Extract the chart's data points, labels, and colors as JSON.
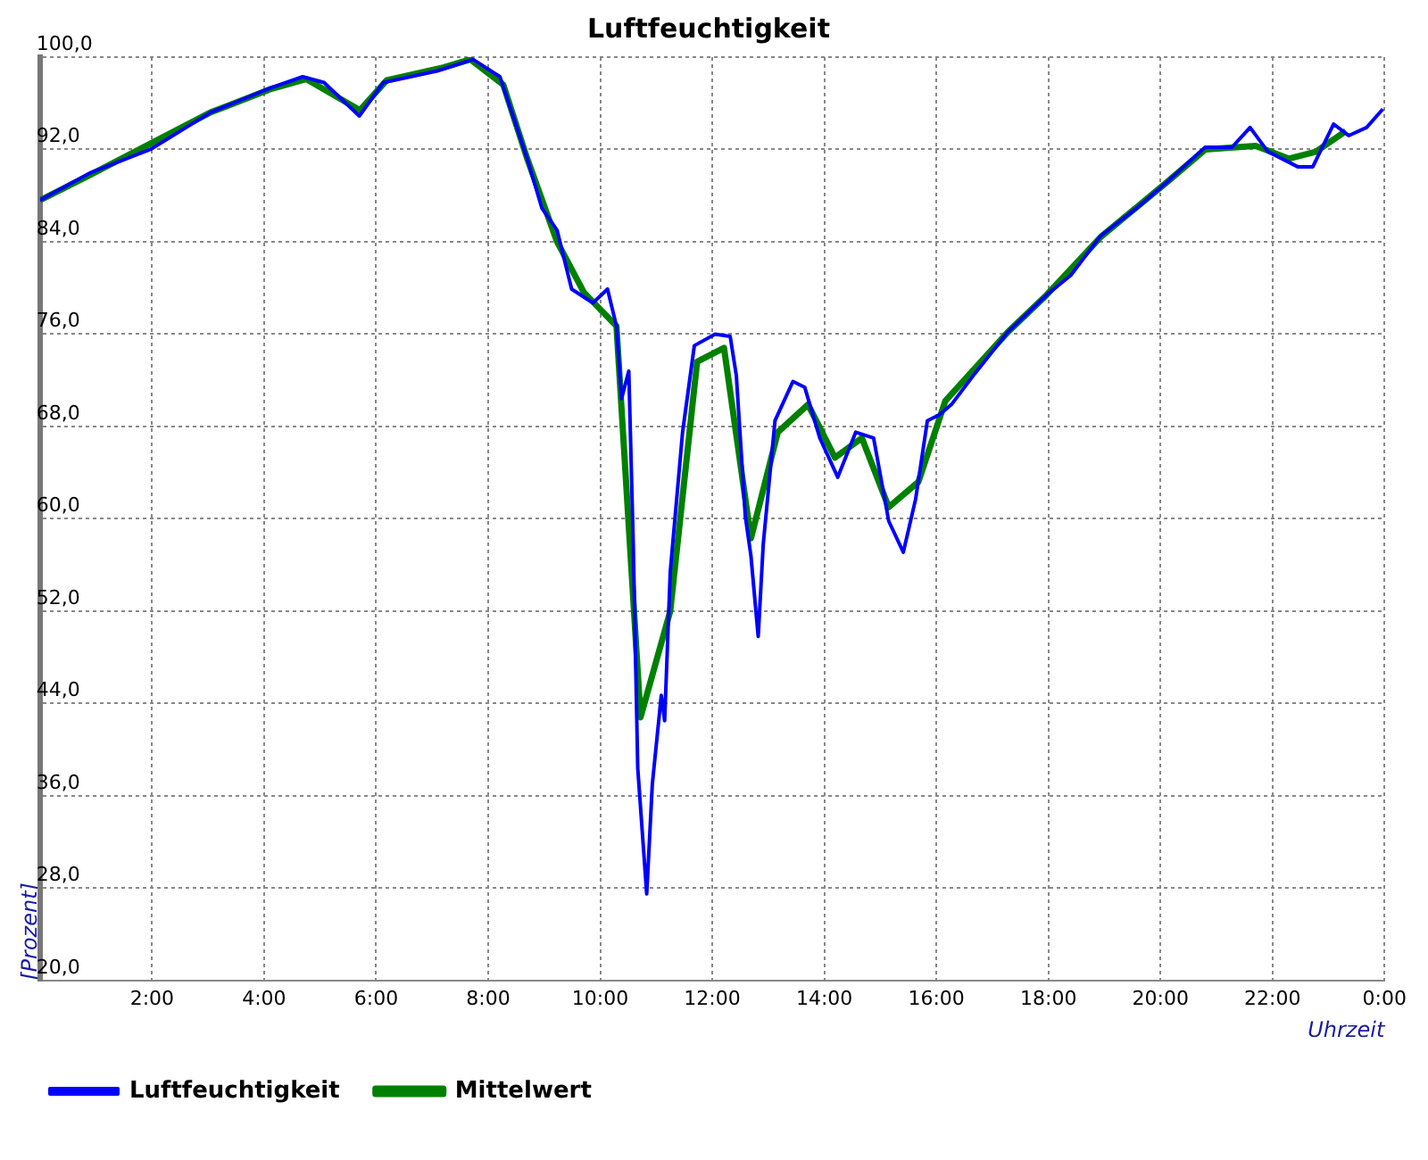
{
  "chart_data": {
    "type": "line",
    "title": "Luftfeuchtigkeit",
    "xlabel": "Uhrzeit",
    "ylabel": "[Prozent]",
    "xlim": [
      0,
      24
    ],
    "ylim": [
      20,
      100
    ],
    "xticks": [
      {
        "value": 0,
        "label": null
      },
      {
        "value": 2,
        "label": "2:00"
      },
      {
        "value": 4,
        "label": "4:00"
      },
      {
        "value": 6,
        "label": "6:00"
      },
      {
        "value": 8,
        "label": "8:00"
      },
      {
        "value": 10,
        "label": "10:00"
      },
      {
        "value": 12,
        "label": "12:00"
      },
      {
        "value": 14,
        "label": "14:00"
      },
      {
        "value": 16,
        "label": "16:00"
      },
      {
        "value": 18,
        "label": "18:00"
      },
      {
        "value": 20,
        "label": "20:00"
      },
      {
        "value": 22,
        "label": "22:00"
      },
      {
        "value": 24,
        "label": "0:00"
      }
    ],
    "yticks": [
      {
        "value": 20,
        "label": "20,0"
      },
      {
        "value": 28,
        "label": "28,0"
      },
      {
        "value": 36,
        "label": "36,0"
      },
      {
        "value": 44,
        "label": "44,0"
      },
      {
        "value": 52,
        "label": "52,0"
      },
      {
        "value": 60,
        "label": "60,0"
      },
      {
        "value": 68,
        "label": "68,0"
      },
      {
        "value": 76,
        "label": "76,0"
      },
      {
        "value": 84,
        "label": "84,0"
      },
      {
        "value": 92,
        "label": "92,0"
      },
      {
        "value": 100,
        "label": "100,0"
      }
    ],
    "grid": true,
    "legend": "bottom left",
    "marker": "none",
    "line_style": "solid",
    "series": [
      {
        "name": "Luftfeuchtigkeit",
        "color": "#0000ff",
        "x": [
          0,
          0.91,
          1.97,
          3.04,
          4.1,
          4.69,
          5.07,
          5.7,
          6.13,
          7.09,
          7.73,
          8.21,
          8.69,
          8.96,
          9.23,
          9.49,
          9.87,
          10.13,
          10.29,
          10.38,
          10.51,
          10.59,
          10.67,
          10.83,
          10.93,
          11.09,
          11.15,
          11.25,
          11.47,
          11.68,
          12.05,
          12.32,
          12.43,
          12.59,
          12.69,
          12.82,
          12.91,
          13.12,
          13.44,
          13.65,
          13.92,
          14.24,
          14.56,
          14.88,
          15.15,
          15.41,
          15.63,
          15.84,
          16.05,
          16.27,
          16.69,
          17.28,
          17.97,
          18.4,
          18.93,
          19.57,
          20.1,
          20.8,
          21.28,
          21.6,
          21.92,
          22.45,
          22.72,
          23.09,
          23.36,
          23.68,
          23.97
        ],
        "values": [
          87.6,
          90.0,
          92.0,
          95.2,
          97.3,
          98.3,
          97.8,
          94.9,
          97.8,
          98.8,
          99.8,
          98.3,
          91.3,
          86.9,
          85.0,
          79.9,
          78.7,
          79.9,
          76.7,
          70.4,
          72.8,
          57.8,
          38.4,
          27.5,
          37.0,
          44.7,
          42.5,
          55.4,
          67.5,
          75.0,
          76.0,
          75.8,
          72.4,
          60.2,
          56.8,
          49.8,
          57.8,
          68.5,
          71.9,
          71.4,
          67.0,
          63.6,
          67.5,
          67.0,
          59.8,
          57.1,
          61.7,
          68.5,
          69.0,
          69.9,
          72.6,
          76.2,
          79.4,
          81.1,
          84.5,
          86.9,
          89.1,
          92.2,
          92.2,
          93.9,
          91.8,
          90.5,
          90.5,
          94.2,
          93.2,
          93.9,
          95.5
        ]
      },
      {
        "name": "Mittelwert",
        "color": "#008000",
        "x": [
          0,
          0.9,
          3.04,
          4.1,
          4.75,
          5.71,
          6.19,
          7.2,
          7.68,
          8.27,
          8.69,
          9.23,
          9.71,
          10.29,
          10.72,
          11.25,
          11.73,
          12.21,
          12.69,
          13.17,
          13.71,
          14.19,
          14.67,
          15.15,
          15.68,
          16.16,
          17.28,
          17.97,
          18.93,
          20.1,
          20.8,
          21.7,
          22.29,
          22.77,
          23.31
        ],
        "values": [
          87.6,
          89.8,
          95.2,
          97.2,
          98.1,
          95.4,
          98.0,
          99.1,
          99.8,
          97.6,
          91.3,
          84.0,
          79.6,
          76.7,
          42.8,
          52.0,
          73.6,
          74.8,
          58.3,
          67.5,
          69.9,
          65.3,
          67.0,
          61.0,
          63.2,
          70.2,
          76.2,
          79.4,
          84.4,
          89.1,
          92.0,
          92.3,
          91.2,
          91.8,
          93.6
        ]
      }
    ]
  }
}
